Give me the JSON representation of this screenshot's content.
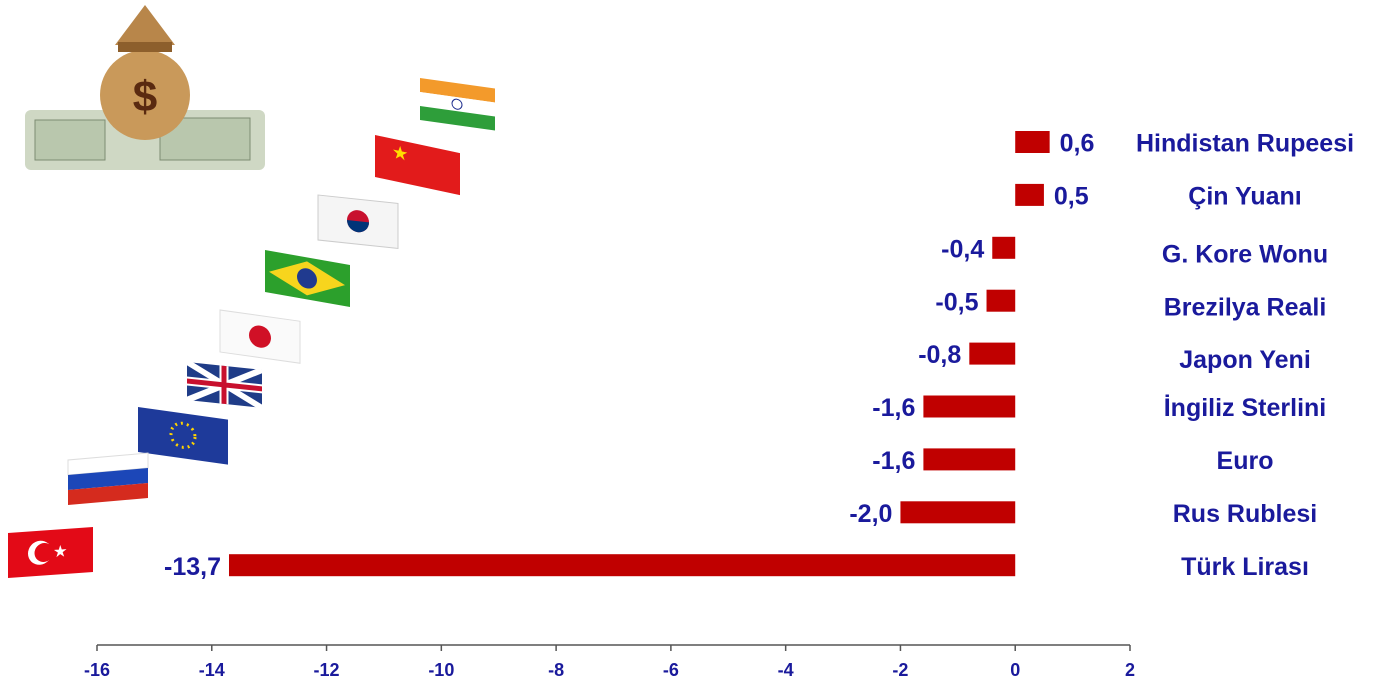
{
  "chart_data": {
    "type": "bar",
    "orientation": "horizontal",
    "categories": [
      "Hindistan Rupeesi",
      "Çin Yuanı",
      "G. Kore Wonu",
      "Brezilya Reali",
      "Japon Yeni",
      "İngiliz Sterlini",
      "Euro",
      "Rus Rublesi",
      "Türk Lirası"
    ],
    "values": [
      0.6,
      0.5,
      -0.4,
      -0.5,
      -0.8,
      -1.6,
      -1.6,
      -2.0,
      -13.7
    ],
    "value_labels": [
      "0,6",
      "0,5",
      "-0,4",
      "-0,5",
      "-0,8",
      "-1,6",
      "-1,6",
      "-2,0",
      "-13,7"
    ],
    "color": "#c00000",
    "xlim": [
      -16,
      2
    ],
    "xticks": [
      -16,
      -14,
      -12,
      -10,
      -8,
      -6,
      -4,
      -2,
      0,
      2
    ],
    "grid": false
  }
}
